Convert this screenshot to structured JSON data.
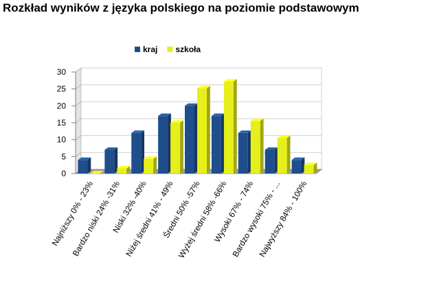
{
  "chart_data": {
    "type": "bar",
    "title": "Rozkład wyników z języka polskiego na poziomie podstawowym",
    "categories": [
      "Najniższy 0% - 23%",
      "Bardzo niski 24% -31%",
      "Niski 32% -40%",
      "Niżej średni 41% - 49%",
      "Średni 50% -57%",
      "Wyżej średni 58% -66%",
      "Wysoki 67% - 74%",
      "Bardzo wysoki 75% - ...",
      "Najwyższy 84% - 100%"
    ],
    "series": [
      {
        "name": "kraj",
        "color": "#1f4e8c",
        "values": [
          4,
          7,
          12,
          17,
          20,
          17,
          12,
          7,
          4
        ]
      },
      {
        "name": "szkoła",
        "color": "#e6ef1a",
        "values": [
          0,
          1.5,
          4.3,
          15,
          25.2,
          27.2,
          15.5,
          10.5,
          2.5
        ]
      }
    ],
    "ylim": [
      0,
      30
    ],
    "yticks": [
      0,
      5,
      10,
      15,
      20,
      25,
      30
    ],
    "legend_position": "top",
    "grid": true
  }
}
